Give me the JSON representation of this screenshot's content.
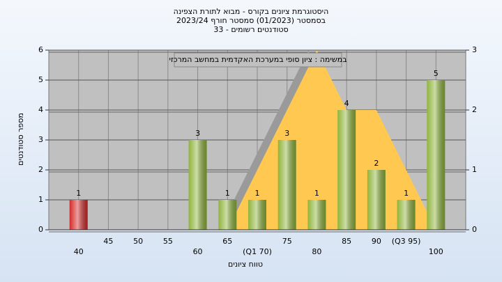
{
  "chart_data": {
    "type": "bar",
    "title": "היסטוגרמת ציונים בקורס - מבוא לתורת הצפינה",
    "subtitle": "בסמסטר  (01/2023)  סמסטר חורף 2023/24",
    "subtitle2": "33 - סטודנטים רשומים",
    "annotation": "במשימה : ציון סופי במערכת האקדמית במחשב המרכזי",
    "x_label": "טווח ציונים",
    "y_label": "מספר סטודנטים",
    "categories": [
      "40",
      "45",
      "50",
      "55",
      "60",
      "65",
      "(Q1 70)",
      "75",
      "80",
      "85",
      "90",
      "(Q3 95)",
      "100"
    ],
    "values": [
      1,
      0,
      0,
      0,
      3,
      1,
      1,
      3,
      1,
      4,
      2,
      1,
      5
    ],
    "value_labels": [
      "1",
      null,
      null,
      null,
      "3",
      "1",
      "1",
      "3",
      "1",
      "4",
      "2",
      "1",
      "5"
    ],
    "bar_colors": [
      "#d42a2a",
      "#8fb43c",
      "#8fb43c",
      "#8fb43c",
      "#8fb43c",
      "#8fb43c",
      "#8fb43c",
      "#8fb43c",
      "#8fb43c",
      "#8fb43c",
      "#8fb43c",
      "#8fb43c",
      "#8fb43c"
    ],
    "area": {
      "color": "#ffc850",
      "axis": "y2",
      "values": [
        null,
        null,
        null,
        null,
        null,
        0,
        1,
        2,
        3,
        2,
        2,
        1,
        0
      ]
    },
    "ylim": [
      0,
      6
    ],
    "yticks": [
      0,
      1,
      2,
      3,
      4,
      5,
      6
    ],
    "y2lim": [
      0,
      3
    ],
    "y2ticks": [
      0,
      1,
      2,
      3
    ],
    "grid": true
  }
}
